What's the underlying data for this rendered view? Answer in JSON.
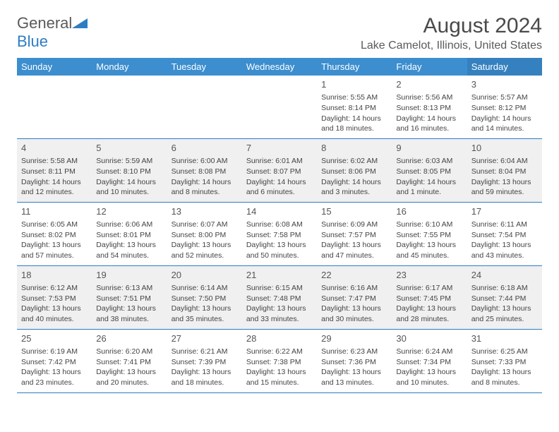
{
  "logo": {
    "word1": "General",
    "word2": "Blue",
    "word1_color": "#5a5a5a",
    "word2_color": "#2d7dc4",
    "shape_color": "#2d7dc4"
  },
  "header": {
    "title": "August 2024",
    "subtitle": "Lake Camelot, Illinois, United States"
  },
  "style": {
    "header_bg": "#3c8ecf",
    "header_text": "#ffffff",
    "row_border": "#2d7dc4",
    "alt_row_bg": "#f0f0f0",
    "title_fontsize": 30,
    "subtitle_fontsize": 16,
    "cell_fontsize": 10.5,
    "daynum_fontsize": 13
  },
  "days_of_week": [
    "Sunday",
    "Monday",
    "Tuesday",
    "Wednesday",
    "Thursday",
    "Friday",
    "Saturday"
  ],
  "weeks": [
    [
      null,
      null,
      null,
      null,
      {
        "n": "1",
        "sunrise": "5:55 AM",
        "sunset": "8:14 PM",
        "dl1": "Daylight: 14 hours",
        "dl2": "and 18 minutes."
      },
      {
        "n": "2",
        "sunrise": "5:56 AM",
        "sunset": "8:13 PM",
        "dl1": "Daylight: 14 hours",
        "dl2": "and 16 minutes."
      },
      {
        "n": "3",
        "sunrise": "5:57 AM",
        "sunset": "8:12 PM",
        "dl1": "Daylight: 14 hours",
        "dl2": "and 14 minutes."
      }
    ],
    [
      {
        "n": "4",
        "sunrise": "5:58 AM",
        "sunset": "8:11 PM",
        "dl1": "Daylight: 14 hours",
        "dl2": "and 12 minutes."
      },
      {
        "n": "5",
        "sunrise": "5:59 AM",
        "sunset": "8:10 PM",
        "dl1": "Daylight: 14 hours",
        "dl2": "and 10 minutes."
      },
      {
        "n": "6",
        "sunrise": "6:00 AM",
        "sunset": "8:08 PM",
        "dl1": "Daylight: 14 hours",
        "dl2": "and 8 minutes."
      },
      {
        "n": "7",
        "sunrise": "6:01 AM",
        "sunset": "8:07 PM",
        "dl1": "Daylight: 14 hours",
        "dl2": "and 6 minutes."
      },
      {
        "n": "8",
        "sunrise": "6:02 AM",
        "sunset": "8:06 PM",
        "dl1": "Daylight: 14 hours",
        "dl2": "and 3 minutes."
      },
      {
        "n": "9",
        "sunrise": "6:03 AM",
        "sunset": "8:05 PM",
        "dl1": "Daylight: 14 hours",
        "dl2": "and 1 minute."
      },
      {
        "n": "10",
        "sunrise": "6:04 AM",
        "sunset": "8:04 PM",
        "dl1": "Daylight: 13 hours",
        "dl2": "and 59 minutes."
      }
    ],
    [
      {
        "n": "11",
        "sunrise": "6:05 AM",
        "sunset": "8:02 PM",
        "dl1": "Daylight: 13 hours",
        "dl2": "and 57 minutes."
      },
      {
        "n": "12",
        "sunrise": "6:06 AM",
        "sunset": "8:01 PM",
        "dl1": "Daylight: 13 hours",
        "dl2": "and 54 minutes."
      },
      {
        "n": "13",
        "sunrise": "6:07 AM",
        "sunset": "8:00 PM",
        "dl1": "Daylight: 13 hours",
        "dl2": "and 52 minutes."
      },
      {
        "n": "14",
        "sunrise": "6:08 AM",
        "sunset": "7:58 PM",
        "dl1": "Daylight: 13 hours",
        "dl2": "and 50 minutes."
      },
      {
        "n": "15",
        "sunrise": "6:09 AM",
        "sunset": "7:57 PM",
        "dl1": "Daylight: 13 hours",
        "dl2": "and 47 minutes."
      },
      {
        "n": "16",
        "sunrise": "6:10 AM",
        "sunset": "7:55 PM",
        "dl1": "Daylight: 13 hours",
        "dl2": "and 45 minutes."
      },
      {
        "n": "17",
        "sunrise": "6:11 AM",
        "sunset": "7:54 PM",
        "dl1": "Daylight: 13 hours",
        "dl2": "and 43 minutes."
      }
    ],
    [
      {
        "n": "18",
        "sunrise": "6:12 AM",
        "sunset": "7:53 PM",
        "dl1": "Daylight: 13 hours",
        "dl2": "and 40 minutes."
      },
      {
        "n": "19",
        "sunrise": "6:13 AM",
        "sunset": "7:51 PM",
        "dl1": "Daylight: 13 hours",
        "dl2": "and 38 minutes."
      },
      {
        "n": "20",
        "sunrise": "6:14 AM",
        "sunset": "7:50 PM",
        "dl1": "Daylight: 13 hours",
        "dl2": "and 35 minutes."
      },
      {
        "n": "21",
        "sunrise": "6:15 AM",
        "sunset": "7:48 PM",
        "dl1": "Daylight: 13 hours",
        "dl2": "and 33 minutes."
      },
      {
        "n": "22",
        "sunrise": "6:16 AM",
        "sunset": "7:47 PM",
        "dl1": "Daylight: 13 hours",
        "dl2": "and 30 minutes."
      },
      {
        "n": "23",
        "sunrise": "6:17 AM",
        "sunset": "7:45 PM",
        "dl1": "Daylight: 13 hours",
        "dl2": "and 28 minutes."
      },
      {
        "n": "24",
        "sunrise": "6:18 AM",
        "sunset": "7:44 PM",
        "dl1": "Daylight: 13 hours",
        "dl2": "and 25 minutes."
      }
    ],
    [
      {
        "n": "25",
        "sunrise": "6:19 AM",
        "sunset": "7:42 PM",
        "dl1": "Daylight: 13 hours",
        "dl2": "and 23 minutes."
      },
      {
        "n": "26",
        "sunrise": "6:20 AM",
        "sunset": "7:41 PM",
        "dl1": "Daylight: 13 hours",
        "dl2": "and 20 minutes."
      },
      {
        "n": "27",
        "sunrise": "6:21 AM",
        "sunset": "7:39 PM",
        "dl1": "Daylight: 13 hours",
        "dl2": "and 18 minutes."
      },
      {
        "n": "28",
        "sunrise": "6:22 AM",
        "sunset": "7:38 PM",
        "dl1": "Daylight: 13 hours",
        "dl2": "and 15 minutes."
      },
      {
        "n": "29",
        "sunrise": "6:23 AM",
        "sunset": "7:36 PM",
        "dl1": "Daylight: 13 hours",
        "dl2": "and 13 minutes."
      },
      {
        "n": "30",
        "sunrise": "6:24 AM",
        "sunset": "7:34 PM",
        "dl1": "Daylight: 13 hours",
        "dl2": "and 10 minutes."
      },
      {
        "n": "31",
        "sunrise": "6:25 AM",
        "sunset": "7:33 PM",
        "dl1": "Daylight: 13 hours",
        "dl2": "and 8 minutes."
      }
    ]
  ]
}
